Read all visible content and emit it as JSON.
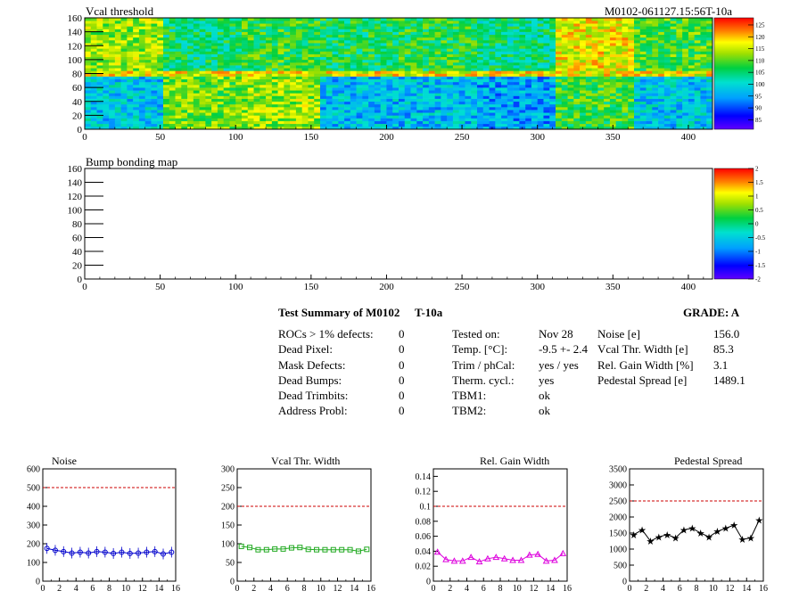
{
  "header": {
    "module_id": "M0102-061127.15:56T-10a"
  },
  "chart_data": [
    {
      "type": "heatmap",
      "title": "Vcal threshold",
      "x_ticks": [
        "0",
        "50",
        "100",
        "150",
        "200",
        "250",
        "300",
        "350",
        "400"
      ],
      "y_ticks": [
        "0",
        "20",
        "40",
        "60",
        "80",
        "100",
        "120",
        "140",
        "160"
      ],
      "xlim": [
        0,
        416
      ],
      "ylim": [
        0,
        160
      ],
      "palette_ticks": [
        "85",
        "90",
        "95",
        "100",
        "105",
        "110",
        "115",
        "120",
        "125"
      ],
      "zlim": [
        81,
        128
      ],
      "roc_columns": 8,
      "roc_width": 52,
      "roc_mean_top": [
        113,
        105,
        108,
        106,
        107,
        104,
        117,
        109
      ],
      "roc_mean_bottom": [
        98,
        111,
        113,
        97,
        97,
        95,
        108,
        98
      ],
      "roc_row_split": 80,
      "row_band_value": 117
    },
    {
      "type": "heatmap",
      "title": "Bump bonding map",
      "x_ticks": [
        "0",
        "50",
        "100",
        "150",
        "200",
        "250",
        "300",
        "350",
        "400"
      ],
      "y_ticks": [
        "0",
        "20",
        "40",
        "60",
        "80",
        "100",
        "120",
        "140",
        "160"
      ],
      "xlim": [
        0,
        416
      ],
      "ylim": [
        0,
        160
      ],
      "palette_ticks": [
        "-2",
        "-1.5",
        "-1",
        "-0.5",
        "0",
        "0.5",
        "1",
        "1.5",
        "2"
      ],
      "zlim": [
        -2,
        2
      ],
      "values": []
    },
    {
      "type": "line",
      "title": "Noise",
      "x": [
        0,
        1,
        2,
        3,
        4,
        5,
        6,
        7,
        8,
        9,
        10,
        11,
        12,
        13,
        14,
        15
      ],
      "values": [
        175,
        165,
        158,
        150,
        155,
        150,
        158,
        155,
        148,
        155,
        148,
        150,
        155,
        158,
        145,
        155
      ],
      "xlim": [
        0,
        16
      ],
      "ylim": [
        0,
        600
      ],
      "x_ticks": [
        "0",
        "2",
        "4",
        "6",
        "8",
        "10",
        "12",
        "14",
        "16"
      ],
      "y_ticks": [
        "0",
        "100",
        "200",
        "300",
        "400",
        "500",
        "600"
      ],
      "reference": 500,
      "marker": "circle",
      "color": "#0000cc"
    },
    {
      "type": "line",
      "title": "Vcal Thr. Width",
      "x": [
        0,
        1,
        2,
        3,
        4,
        5,
        6,
        7,
        8,
        9,
        10,
        11,
        12,
        13,
        14,
        15
      ],
      "values": [
        93,
        90,
        84,
        84,
        86,
        86,
        89,
        90,
        85,
        84,
        84,
        84,
        84,
        84,
        80,
        85
      ],
      "xlim": [
        0,
        16
      ],
      "ylim": [
        0,
        300
      ],
      "x_ticks": [
        "0",
        "2",
        "4",
        "6",
        "8",
        "10",
        "12",
        "14",
        "16"
      ],
      "y_ticks": [
        "0",
        "50",
        "100",
        "150",
        "200",
        "250",
        "300"
      ],
      "reference": 200,
      "marker": "square",
      "color": "#22aa22"
    },
    {
      "type": "line",
      "title": "Rel. Gain Width",
      "x": [
        0,
        1,
        2,
        3,
        4,
        5,
        6,
        7,
        8,
        9,
        10,
        11,
        12,
        13,
        14,
        15
      ],
      "values": [
        0.039,
        0.029,
        0.027,
        0.027,
        0.032,
        0.026,
        0.03,
        0.032,
        0.03,
        0.028,
        0.028,
        0.035,
        0.036,
        0.027,
        0.028,
        0.037
      ],
      "xlim": [
        0,
        16
      ],
      "ylim": [
        0,
        0.15
      ],
      "x_ticks": [
        "0",
        "2",
        "4",
        "6",
        "8",
        "10",
        "12",
        "14",
        "16"
      ],
      "y_ticks": [
        "0",
        "0.02",
        "0.04",
        "0.06",
        "0.08",
        "0.1",
        "0.12",
        "0.14"
      ],
      "reference": 0.1,
      "marker": "triangle",
      "color": "#dd00dd"
    },
    {
      "type": "line",
      "title": "Pedestal Spread",
      "x": [
        0,
        1,
        2,
        3,
        4,
        5,
        6,
        7,
        8,
        9,
        10,
        11,
        12,
        13,
        14,
        15
      ],
      "values": [
        1450,
        1600,
        1250,
        1380,
        1450,
        1350,
        1600,
        1650,
        1500,
        1380,
        1550,
        1650,
        1750,
        1300,
        1350,
        1900
      ],
      "xlim": [
        0,
        16
      ],
      "ylim": [
        0,
        3500
      ],
      "x_ticks": [
        "0",
        "2",
        "4",
        "6",
        "8",
        "10",
        "12",
        "14",
        "16"
      ],
      "y_ticks": [
        "0",
        "500",
        "1000",
        "1500",
        "2000",
        "2500",
        "3000",
        "3500"
      ],
      "reference": 2500,
      "marker": "star",
      "color": "#000000"
    }
  ],
  "summary": {
    "title": "Test Summary of M0102",
    "temp_tag": "T-10a",
    "grade": "GRADE:  A",
    "col1": {
      "labels": [
        "ROCs > 1% defects:",
        "Dead Pixel:",
        "Mask Defects:",
        "Dead Bumps:",
        "Dead Trimbits:",
        "Address Probl:"
      ],
      "values": [
        "0",
        "0",
        "0",
        "0",
        "0",
        "0"
      ]
    },
    "col2": {
      "labels": [
        "Tested on:",
        "Temp. [°C]:",
        "Trim / phCal:",
        "Therm. cycl.:",
        "TBM1:",
        "TBM2:"
      ],
      "values": [
        "Nov 28",
        "-9.5 +- 2.4",
        "yes / yes",
        "yes",
        "ok",
        "ok"
      ]
    },
    "col3": {
      "labels": [
        "Noise [e]",
        "Vcal Thr. Width [e]",
        "Rel. Gain Width [%]",
        "Pedestal Spread [e]"
      ],
      "values": [
        "156.0",
        "85.3",
        "3.1",
        "1489.1"
      ]
    }
  },
  "colors": {
    "reference_line": "#cc0000",
    "frame": "#000000"
  }
}
